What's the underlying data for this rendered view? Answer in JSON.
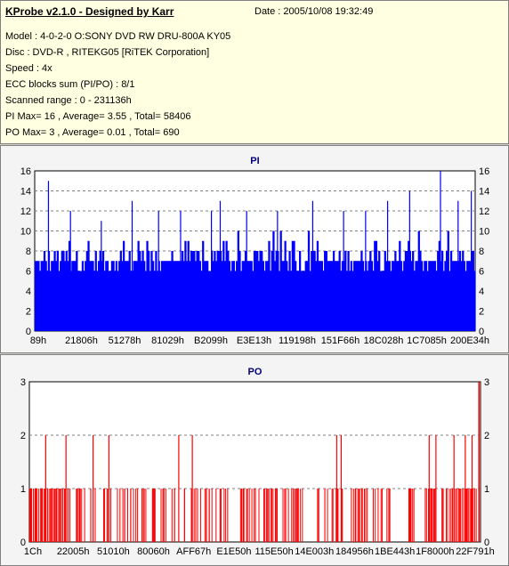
{
  "header": {
    "title": "KProbe v2.1.0 - Designed by Karr",
    "date": "Date : 2005/10/08 19:32:49",
    "lines": [
      "Model : 4-0-2-0 O:SONY    DVD RW DRU-800A  KY05",
      "Disc : DVD-R , RITEKG05 [RiTEK Corporation]",
      "Speed : 4x",
      "ECC blocks sum (PI/PO) : 8/1",
      "Scanned range : 0 - 231136h",
      "PI Max= 16 , Average= 3.55 , Total= 58406",
      "PO Max= 3 , Average= 0.01 , Total= 690"
    ]
  },
  "colors": {
    "pi_series": "#0000ff",
    "po_series": "#ff0000",
    "title_text": "#000080",
    "panel_bg": "#f4f4f4"
  },
  "chart_data": [
    {
      "type": "bar",
      "title": "PI",
      "xlabel": "",
      "ylabel": "",
      "ylim": [
        0,
        16
      ],
      "y_ticks": [
        0,
        2,
        4,
        6,
        8,
        10,
        12,
        14,
        16
      ],
      "x_tick_labels": [
        "89h",
        "21806h",
        "51278h",
        "81029h",
        "B2099h",
        "E3E13h",
        "119198h",
        "151F66h",
        "18C028h",
        "1C7085h",
        "200E34h"
      ],
      "baseline": {
        "from": 6,
        "to": 8,
        "typical": 7
      },
      "peaks": [
        {
          "x": 0.03,
          "v": 15
        },
        {
          "x": 0.08,
          "v": 12
        },
        {
          "x": 0.15,
          "v": 11
        },
        {
          "x": 0.22,
          "v": 13
        },
        {
          "x": 0.28,
          "v": 12
        },
        {
          "x": 0.33,
          "v": 12
        },
        {
          "x": 0.4,
          "v": 12
        },
        {
          "x": 0.42,
          "v": 13
        },
        {
          "x": 0.48,
          "v": 12
        },
        {
          "x": 0.55,
          "v": 12
        },
        {
          "x": 0.63,
          "v": 13
        },
        {
          "x": 0.7,
          "v": 12
        },
        {
          "x": 0.75,
          "v": 12
        },
        {
          "x": 0.8,
          "v": 13
        },
        {
          "x": 0.85,
          "v": 14
        },
        {
          "x": 0.92,
          "v": 16
        },
        {
          "x": 0.96,
          "v": 13
        },
        {
          "x": 0.99,
          "v": 14
        }
      ],
      "grid": true
    },
    {
      "type": "bar",
      "title": "PO",
      "xlabel": "",
      "ylabel": "",
      "ylim": [
        0,
        3
      ],
      "y_ticks": [
        0,
        1,
        2,
        3
      ],
      "x_tick_labels": [
        "1Ch",
        "22005h",
        "51010h",
        "80060h",
        "AFF67h",
        "E1E50h",
        "115E50h",
        "14E003h",
        "184956h",
        "1BE443h",
        "1F8000h",
        "22F791h"
      ],
      "values_at_2": [
        0.035,
        0.08,
        0.14,
        0.175,
        0.33,
        0.36,
        0.68,
        0.69,
        0.885,
        0.9,
        0.94,
        0.965,
        0.98
      ],
      "values_at_3": [
        0.995
      ],
      "grid": true
    }
  ]
}
